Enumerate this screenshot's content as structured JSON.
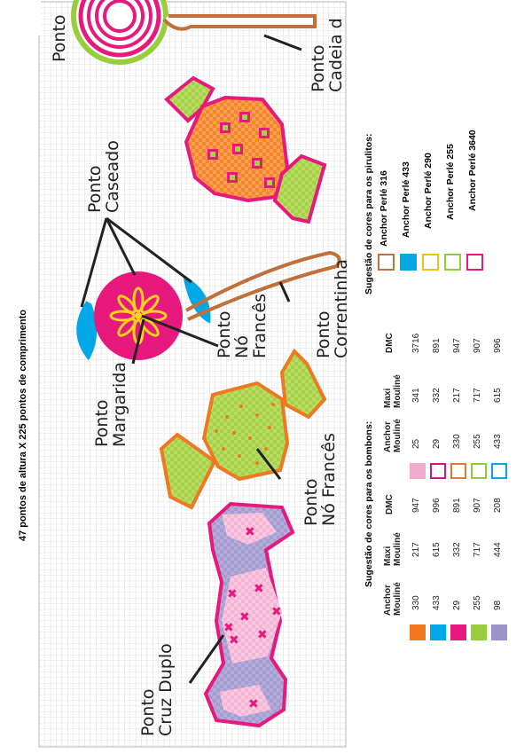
{
  "header": "47 pontos de altura X 225 pontos de comprimento",
  "stitch_labels": {
    "cruz_duplo": [
      "Ponto",
      "Cruz Duplo"
    ],
    "no_frances_green": [
      "Ponto",
      "Nó Francês"
    ],
    "margarida": [
      "Ponto",
      "Margarida"
    ],
    "caseado": [
      "Ponto",
      "Caseado"
    ],
    "no_frances_center": [
      "Ponto",
      "Nó",
      "Francês"
    ],
    "correntinha": [
      "Ponto",
      "Correntinha"
    ],
    "cadeia": [
      "Ponto",
      "Cadeia d"
    ],
    "ponto_cut": "Ponto"
  },
  "bombons_table": {
    "title": "Sugestão de cores para os bombons:",
    "left_headers": {
      "anchor": [
        "Anchor",
        "Mouliné"
      ],
      "maxi": [
        "Maxi",
        "Mouliné"
      ],
      "dmc": "DMC"
    },
    "right_headers": {
      "anchor": [
        "Anchor",
        "Mouliné"
      ],
      "maxi": [
        "Maxi",
        "Mouliné"
      ],
      "dmc": "DMC"
    },
    "left_rows": [
      {
        "color": "#f07820",
        "anchor": "330",
        "maxi": "217",
        "dmc": "947"
      },
      {
        "color": "#00a8e8",
        "anchor": "433",
        "maxi": "615",
        "dmc": "996"
      },
      {
        "color": "#e8197d",
        "anchor": "29",
        "maxi": "332",
        "dmc": "891"
      },
      {
        "color": "#9acd3c",
        "anchor": "255",
        "maxi": "717",
        "dmc": "907"
      },
      {
        "color": "#9b93c9",
        "anchor": "98",
        "maxi": "444",
        "dmc": "208"
      }
    ],
    "right_rows": [
      {
        "color": "#f4a9cf",
        "filled": true,
        "anchor": "25",
        "maxi": "341",
        "dmc": "3716"
      },
      {
        "color": "#d0187a",
        "filled": false,
        "anchor": "29",
        "maxi": "332",
        "dmc": "891"
      },
      {
        "color": "#e07a2e",
        "filled": false,
        "anchor": "330",
        "maxi": "217",
        "dmc": "947"
      },
      {
        "color": "#8ccf3a",
        "filled": false,
        "anchor": "255",
        "maxi": "717",
        "dmc": "907"
      },
      {
        "color": "#0aa6e0",
        "filled": false,
        "anchor": "433",
        "maxi": "615",
        "dmc": "996"
      }
    ]
  },
  "pirulitos_table": {
    "title": "Sugestão de cores para os pirulitos:",
    "rows": [
      {
        "color": "#c0703a",
        "filled": false,
        "label": "Anchor Perlé 316"
      },
      {
        "color": "#08a8e6",
        "filled": true,
        "label": "Anchor Perlé 433"
      },
      {
        "color": "#f0c020",
        "filled": false,
        "label": "Anchor Perlé 290"
      },
      {
        "color": "#8ccf3a",
        "filled": false,
        "label": "Anchor Perlé 255"
      },
      {
        "color": "#e8197d",
        "filled": false,
        "label": "Anchor Perlé 3640"
      }
    ]
  },
  "colors": {
    "grid": "#c8c8c8",
    "pink": "#e8197d",
    "light_pink": "#f4a9cf",
    "lavender": "#9b93c9",
    "orange": "#f07820",
    "green": "#9acd3c",
    "blue": "#00a8e8",
    "brown": "#c0703a",
    "yellow": "#ffd21f"
  }
}
